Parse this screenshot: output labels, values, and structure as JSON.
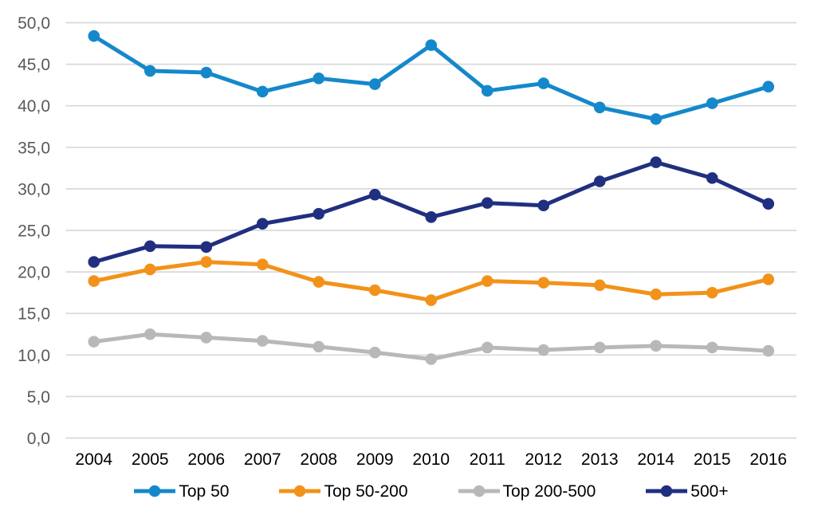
{
  "chart_data": {
    "type": "line",
    "title": "",
    "xlabel": "",
    "ylabel": "",
    "categories": [
      "2004",
      "2005",
      "2006",
      "2007",
      "2008",
      "2009",
      "2010",
      "2011",
      "2012",
      "2013",
      "2014",
      "2015",
      "2016"
    ],
    "series": [
      {
        "name": "Top 50",
        "color": "#1588cb",
        "values": [
          48.4,
          44.2,
          44.0,
          41.7,
          43.3,
          42.6,
          47.3,
          41.8,
          42.7,
          39.8,
          38.4,
          40.3,
          42.3
        ]
      },
      {
        "name": "Top 50-200",
        "color": "#f2921a",
        "values": [
          18.9,
          20.3,
          21.2,
          20.9,
          18.8,
          17.8,
          16.6,
          18.9,
          18.7,
          18.4,
          17.3,
          17.5,
          19.1
        ]
      },
      {
        "name": "Top 200-500",
        "color": "#b8b8b8",
        "values": [
          11.6,
          12.5,
          12.1,
          11.7,
          11.0,
          10.3,
          9.5,
          10.9,
          10.6,
          10.9,
          11.1,
          10.9,
          10.5
        ]
      },
      {
        "name": "500+",
        "color": "#212f80",
        "values": [
          21.2,
          23.1,
          23.0,
          25.8,
          27.0,
          29.3,
          26.6,
          28.3,
          28.0,
          30.9,
          33.2,
          31.3,
          28.2
        ]
      }
    ],
    "ylim": [
      0,
      50
    ],
    "ytick_step": 5,
    "ytick_labels": [
      "0,0",
      "5,0",
      "10,0",
      "15,0",
      "20,0",
      "25,0",
      "30,0",
      "35,0",
      "40,0",
      "45,0",
      "50,0"
    ],
    "grid": true,
    "legend_position": "bottom",
    "colors": {
      "background": "#ffffff",
      "gridline": "#d9d9d9",
      "ytick_text": "#595959",
      "xtick_text": "#000000",
      "legend_text": "#000000"
    }
  }
}
